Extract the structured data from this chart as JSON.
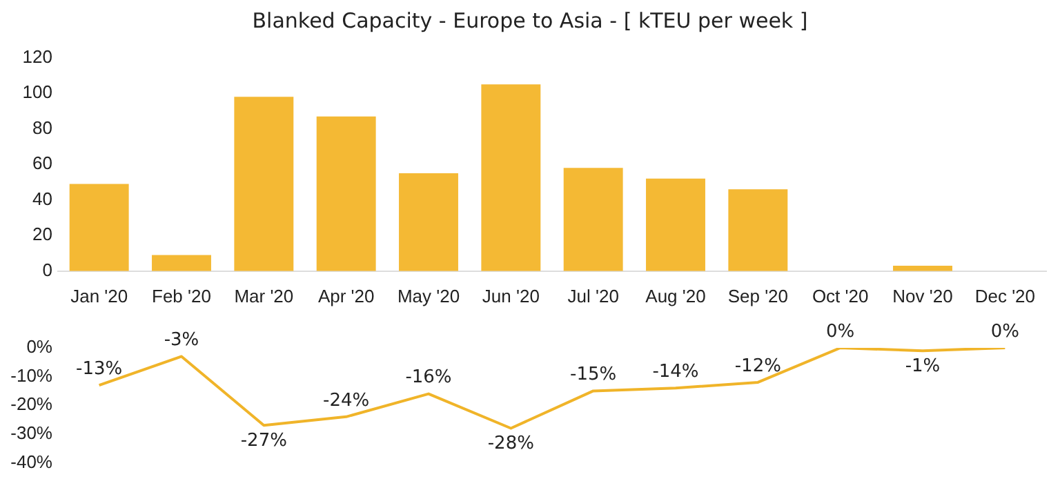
{
  "chart_data": [
    {
      "type": "bar",
      "title": "Blanked Capacity - Europe to Asia - [ kTEU per week ]",
      "categories": [
        "Jan '20",
        "Feb '20",
        "Mar '20",
        "Apr '20",
        "May '20",
        "Jun '20",
        "Jul '20",
        "Aug '20",
        "Sep '20",
        "Oct '20",
        "Nov '20",
        "Dec '20"
      ],
      "values": [
        49,
        9,
        98,
        87,
        55,
        105,
        58,
        52,
        46,
        0,
        3,
        0
      ],
      "color": "#f4b934",
      "ylim": [
        0,
        120
      ],
      "yticks": [
        0,
        20,
        40,
        60,
        80,
        100,
        120
      ],
      "grid": false,
      "legend": false
    },
    {
      "type": "line",
      "categories": [
        null,
        null,
        null,
        null,
        null,
        null,
        null,
        null,
        null,
        null,
        null,
        null
      ],
      "values": [
        -13,
        -3,
        -27,
        -24,
        -16,
        -28,
        -15,
        -14,
        -12,
        0,
        -1,
        0
      ],
      "value_labels": [
        "-13%",
        "-3%",
        "-27%",
        "-24%",
        "-16%",
        "-28%",
        "-15%",
        "-14%",
        "-12%",
        "0%",
        "-1%",
        "0%"
      ],
      "color": "#f0b429",
      "ylim": [
        -40,
        0
      ],
      "yticks": [
        {
          "value": -40,
          "label": "-40%"
        },
        {
          "value": -30,
          "label": "-30%"
        },
        {
          "value": -20,
          "label": "-20%"
        },
        {
          "value": -10,
          "label": "-10%"
        },
        {
          "value": 0,
          "label": "0%"
        }
      ],
      "tick_labels": "y",
      "grid": false,
      "legend": false,
      "marker": "none",
      "line_style": "solid"
    }
  ]
}
